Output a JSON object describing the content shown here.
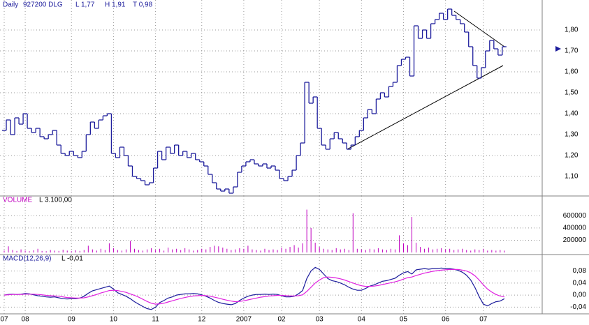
{
  "chart_data": [
    {
      "type": "step",
      "title": "Daily",
      "subtitle": "927200 DLG",
      "annotations": [
        "L 1,77",
        "H 1,91",
        "T 0,98"
      ],
      "color": "#1c1c9c",
      "ylim": [
        1.0,
        1.92
      ],
      "yticks": [
        {
          "value": 1.1,
          "label": "1,10"
        },
        {
          "value": 1.2,
          "label": "1,20"
        },
        {
          "value": 1.3,
          "label": "1,30"
        },
        {
          "value": 1.4,
          "label": "1,40"
        },
        {
          "value": 1.5,
          "label": "1,50"
        },
        {
          "value": 1.6,
          "label": "1,60"
        },
        {
          "value": 1.7,
          "label": "1,70"
        },
        {
          "value": 1.8,
          "label": "1,80"
        }
      ],
      "grid": true,
      "values": [
        1.32,
        1.37,
        1.3,
        1.38,
        1.35,
        1.4,
        1.33,
        1.31,
        1.33,
        1.29,
        1.28,
        1.3,
        1.32,
        1.25,
        1.21,
        1.2,
        1.22,
        1.2,
        1.19,
        1.22,
        1.3,
        1.36,
        1.33,
        1.37,
        1.39,
        1.4,
        1.21,
        1.19,
        1.24,
        1.2,
        1.15,
        1.1,
        1.09,
        1.08,
        1.06,
        1.07,
        1.14,
        1.22,
        1.18,
        1.24,
        1.21,
        1.25,
        1.2,
        1.22,
        1.19,
        1.21,
        1.18,
        1.17,
        1.15,
        1.11,
        1.07,
        1.04,
        1.03,
        1.04,
        1.02,
        1.05,
        1.12,
        1.15,
        1.17,
        1.18,
        1.16,
        1.15,
        1.16,
        1.14,
        1.15,
        1.13,
        1.09,
        1.08,
        1.1,
        1.13,
        1.2,
        1.26,
        1.55,
        1.45,
        1.48,
        1.33,
        1.25,
        1.23,
        1.28,
        1.31,
        1.28,
        1.26,
        1.23,
        1.25,
        1.29,
        1.32,
        1.38,
        1.42,
        1.4,
        1.47,
        1.5,
        1.48,
        1.53,
        1.55,
        1.63,
        1.66,
        1.67,
        1.58,
        1.82,
        1.76,
        1.8,
        1.76,
        1.83,
        1.85,
        1.88,
        1.85,
        1.9,
        1.87,
        1.85,
        1.83,
        1.79,
        1.72,
        1.63,
        1.57,
        1.62,
        1.7,
        1.75,
        1.71,
        1.68,
        1.72
      ]
    },
    {
      "type": "bar",
      "title": "VOLUME",
      "annotations": [
        "L 3.100,00"
      ],
      "color": "#c000c0",
      "ylim": [
        0,
        900000
      ],
      "yticks": [
        200000,
        400000,
        600000
      ],
      "grid": true,
      "values": [
        30000,
        100000,
        40000,
        25000,
        50000,
        30000,
        20000,
        35000,
        60000,
        25000,
        20000,
        40000,
        30000,
        25000,
        45000,
        30000,
        20000,
        35000,
        25000,
        40000,
        110000,
        50000,
        30000,
        60000,
        40000,
        150000,
        70000,
        40000,
        30000,
        50000,
        190000,
        60000,
        40000,
        30000,
        50000,
        70000,
        40000,
        60000,
        30000,
        80000,
        50000,
        60000,
        40000,
        70000,
        50000,
        30000,
        40000,
        60000,
        50000,
        90000,
        110000,
        100000,
        80000,
        60000,
        40000,
        50000,
        70000,
        60000,
        110000,
        50000,
        40000,
        30000,
        60000,
        40000,
        50000,
        40000,
        80000,
        60000,
        90000,
        120000,
        80000,
        150000,
        700000,
        400000,
        160000,
        90000,
        60000,
        50000,
        40000,
        70000,
        50000,
        60000,
        40000,
        640000,
        60000,
        50000,
        40000,
        60000,
        50000,
        70000,
        50000,
        40000,
        60000,
        50000,
        280000,
        150000,
        120000,
        580000,
        160000,
        90000,
        60000,
        80000,
        50000,
        60000,
        70000,
        50000,
        60000,
        40000,
        50000,
        60000,
        40000,
        30000,
        50000,
        40000,
        60000,
        30000,
        40000,
        30000,
        40000,
        30000
      ]
    },
    {
      "type": "line",
      "title": "MACD(12,26,9)",
      "annotations": [
        "L -0,01"
      ],
      "ylim": [
        -0.06,
        0.13
      ],
      "yticks": [
        {
          "value": -0.04,
          "label": "-0,04"
        },
        {
          "value": 0,
          "label": "0,00"
        },
        {
          "value": 0.04,
          "label": "0,04"
        },
        {
          "value": 0.08,
          "label": "0,08"
        }
      ],
      "grid": true,
      "xlim": [
        -1,
        128
      ],
      "xticks": [
        {
          "value": 0,
          "label": "07"
        },
        {
          "value": 5,
          "label": "08"
        },
        {
          "value": 16,
          "label": "09"
        },
        {
          "value": 26,
          "label": "10"
        },
        {
          "value": 36,
          "label": "11"
        },
        {
          "value": 47,
          "label": "12"
        },
        {
          "value": 57,
          "label": "2007"
        },
        {
          "value": 66,
          "label": "02"
        },
        {
          "value": 75,
          "label": "03"
        },
        {
          "value": 85,
          "label": "04"
        },
        {
          "value": 95,
          "label": "05"
        },
        {
          "value": 105,
          "label": "06"
        },
        {
          "value": 114,
          "label": "07"
        }
      ],
      "series": [
        {
          "color": "#1c1c9c",
          "values": [
            0.0,
            0.002,
            0.003,
            0.002,
            0.003,
            0.005,
            0.004,
            0.001,
            -0.002,
            -0.004,
            -0.006,
            -0.007,
            -0.006,
            -0.009,
            -0.012,
            -0.013,
            -0.012,
            -0.012,
            -0.01,
            -0.004,
            0.006,
            0.014,
            0.018,
            0.022,
            0.026,
            0.03,
            0.02,
            0.008,
            0.002,
            -0.004,
            -0.012,
            -0.022,
            -0.03,
            -0.038,
            -0.045,
            -0.048,
            -0.04,
            -0.025,
            -0.018,
            -0.01,
            -0.006,
            0.0,
            0.002,
            0.004,
            0.004,
            0.005,
            0.004,
            0.001,
            -0.004,
            -0.01,
            -0.018,
            -0.024,
            -0.028,
            -0.03,
            -0.032,
            -0.028,
            -0.018,
            -0.01,
            -0.004,
            0.0,
            0.002,
            0.002,
            0.003,
            0.002,
            0.003,
            0.002,
            -0.002,
            -0.006,
            -0.006,
            -0.004,
            0.004,
            0.015,
            0.055,
            0.08,
            0.092,
            0.085,
            0.07,
            0.055,
            0.048,
            0.045,
            0.04,
            0.034,
            0.026,
            0.02,
            0.016,
            0.016,
            0.022,
            0.03,
            0.034,
            0.04,
            0.046,
            0.048,
            0.052,
            0.056,
            0.066,
            0.074,
            0.078,
            0.07,
            0.084,
            0.086,
            0.088,
            0.086,
            0.088,
            0.088,
            0.09,
            0.088,
            0.088,
            0.086,
            0.082,
            0.076,
            0.066,
            0.05,
            0.025,
            -0.005,
            -0.03,
            -0.036,
            -0.028,
            -0.022,
            -0.02,
            -0.012
          ]
        },
        {
          "color": "#e020e0",
          "values": [
            0.0,
            0.001,
            0.002,
            0.002,
            0.002,
            0.003,
            0.003,
            0.003,
            0.002,
            0.001,
            -0.001,
            -0.002,
            -0.003,
            -0.004,
            -0.006,
            -0.008,
            -0.009,
            -0.01,
            -0.01,
            -0.009,
            -0.006,
            -0.002,
            0.002,
            0.007,
            0.011,
            0.015,
            0.016,
            0.015,
            0.012,
            0.009,
            0.004,
            -0.001,
            -0.007,
            -0.014,
            -0.021,
            -0.027,
            -0.03,
            -0.029,
            -0.027,
            -0.023,
            -0.019,
            -0.015,
            -0.011,
            -0.008,
            -0.005,
            -0.003,
            -0.002,
            -0.001,
            -0.002,
            -0.004,
            -0.007,
            -0.01,
            -0.014,
            -0.017,
            -0.02,
            -0.022,
            -0.021,
            -0.019,
            -0.016,
            -0.013,
            -0.01,
            -0.007,
            -0.005,
            -0.003,
            -0.002,
            -0.001,
            -0.001,
            -0.002,
            -0.003,
            -0.003,
            -0.002,
            0.001,
            0.012,
            0.026,
            0.04,
            0.05,
            0.058,
            0.06,
            0.059,
            0.057,
            0.054,
            0.05,
            0.045,
            0.04,
            0.035,
            0.031,
            0.029,
            0.029,
            0.03,
            0.032,
            0.035,
            0.038,
            0.041,
            0.044,
            0.048,
            0.053,
            0.058,
            0.06,
            0.065,
            0.069,
            0.073,
            0.076,
            0.079,
            0.081,
            0.083,
            0.084,
            0.085,
            0.085,
            0.085,
            0.083,
            0.08,
            0.074,
            0.064,
            0.05,
            0.034,
            0.02,
            0.01,
            0.002,
            -0.003,
            -0.006
          ]
        }
      ]
    }
  ]
}
